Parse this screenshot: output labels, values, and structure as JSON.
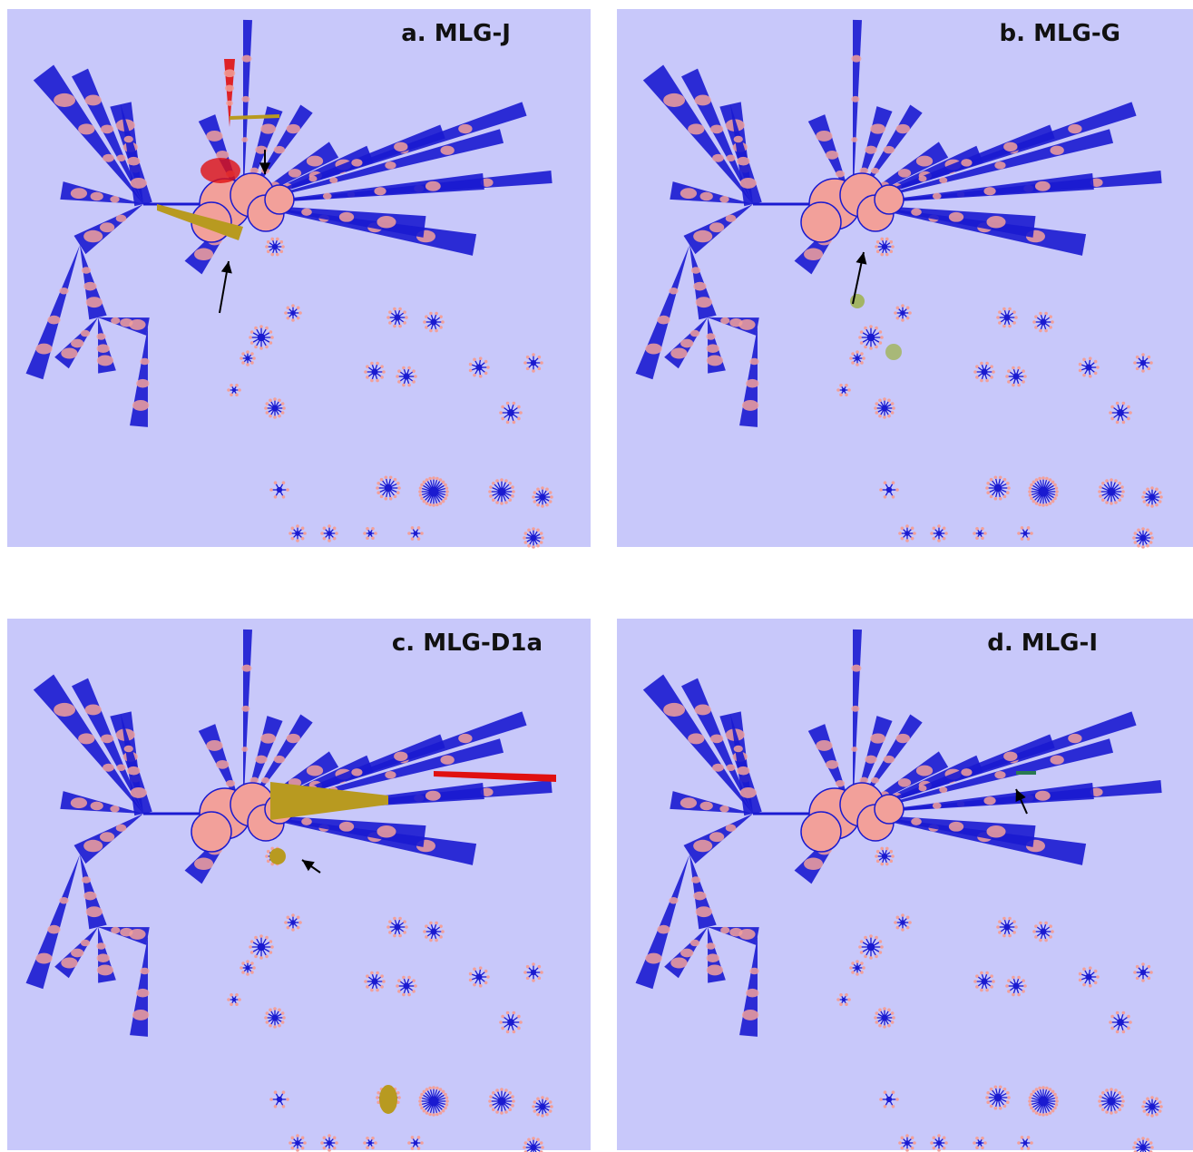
{
  "panels": [
    {
      "label": "a. MLG-J"
    },
    {
      "label": "b. MLG-G"
    },
    {
      "label": "c. MLG-D1a"
    },
    {
      "label": "d. MLG-I"
    }
  ]
}
